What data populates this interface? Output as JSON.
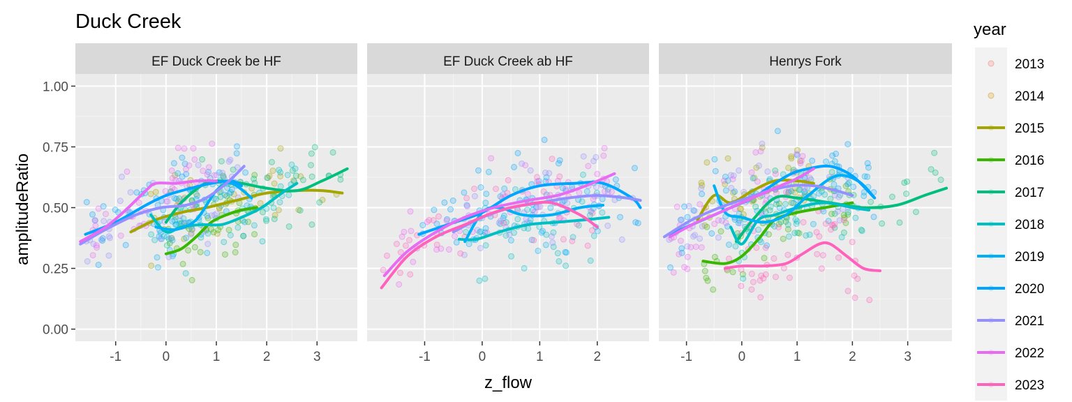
{
  "chart_data": {
    "type": "scatter",
    "title": "Duck Creek",
    "xlabel": "z_flow",
    "ylabel": "amplitudeRatio",
    "ylim": [
      -0.05,
      1.05
    ],
    "y_ticks": [
      0.0,
      0.25,
      0.5,
      0.75,
      1.0
    ],
    "y_tick_labels": [
      "0.00",
      "0.25",
      "0.50",
      "0.75",
      "1.00"
    ],
    "grid": true,
    "legend": {
      "title": "year",
      "position": "right",
      "items": [
        {
          "label": "2013",
          "color": "#F8766D",
          "kind": "point"
        },
        {
          "label": "2014",
          "color": "#D89000",
          "kind": "point"
        },
        {
          "label": "2015",
          "color": "#A3A500",
          "kind": "line"
        },
        {
          "label": "2016",
          "color": "#39B600",
          "kind": "line"
        },
        {
          "label": "2017",
          "color": "#00BF7D",
          "kind": "line"
        },
        {
          "label": "2018",
          "color": "#00BFC4",
          "kind": "line"
        },
        {
          "label": "2019",
          "color": "#00B0F6",
          "kind": "line"
        },
        {
          "label": "2020",
          "color": "#00A5FF",
          "kind": "line"
        },
        {
          "label": "2021",
          "color": "#9590FF",
          "kind": "line"
        },
        {
          "label": "2022",
          "color": "#E76BF3",
          "kind": "line"
        },
        {
          "label": "2023",
          "color": "#FF62BC",
          "kind": "line"
        }
      ]
    },
    "panels": [
      {
        "strip": "EF Duck Creek be HF",
        "xlim": [
          -1.8,
          3.8
        ],
        "x_ticks": [
          -1,
          0,
          1,
          2,
          3
        ],
        "x_tick_labels": [
          "-1",
          "0",
          "1",
          "2",
          "3"
        ],
        "series": [
          {
            "year": "2015",
            "x": [
              -0.7,
              -0.2,
              0.3,
              0.8,
              1.4,
              2.0,
              2.6,
              3.1,
              3.5
            ],
            "y": [
              0.4,
              0.45,
              0.48,
              0.5,
              0.53,
              0.56,
              0.57,
              0.57,
              0.56
            ]
          },
          {
            "year": "2016",
            "x": [
              0.0,
              0.3,
              0.6,
              0.9,
              1.2,
              1.5,
              1.8
            ],
            "y": [
              0.31,
              0.33,
              0.38,
              0.44,
              0.47,
              0.49,
              0.5
            ]
          },
          {
            "year": "2017",
            "x": [
              0.0,
              0.3,
              0.7,
              1.0,
              1.5,
              2.0,
              2.6,
              3.1,
              3.6
            ],
            "y": [
              0.44,
              0.52,
              0.59,
              0.61,
              0.6,
              0.58,
              0.57,
              0.61,
              0.66
            ]
          },
          {
            "year": "2018",
            "x": [
              -0.3,
              0.0,
              0.3,
              0.7,
              1.1,
              1.5,
              1.9,
              2.3,
              2.6
            ],
            "y": [
              0.47,
              0.4,
              0.42,
              0.43,
              0.43,
              0.46,
              0.5,
              0.56,
              0.6
            ]
          },
          {
            "year": "2019",
            "x": [
              -0.2,
              0.2,
              0.6,
              1.0,
              1.3,
              1.7
            ],
            "y": [
              0.42,
              0.41,
              0.45,
              0.57,
              0.6,
              0.54
            ]
          },
          {
            "year": "2020",
            "x": [
              -1.6,
              -1.0,
              -0.4,
              0.0,
              0.5,
              0.9,
              1.3,
              1.5
            ],
            "y": [
              0.39,
              0.44,
              0.51,
              0.55,
              0.58,
              0.6,
              0.61,
              0.59
            ]
          },
          {
            "year": "2021",
            "x": [
              -1.7,
              -1.2,
              -0.6,
              -0.1,
              0.4,
              0.8,
              1.2,
              1.55
            ],
            "y": [
              0.35,
              0.41,
              0.47,
              0.5,
              0.51,
              0.54,
              0.6,
              0.67
            ]
          },
          {
            "year": "2022",
            "x": [
              -1.7,
              -1.2,
              -0.8,
              -0.4,
              -0.2,
              0.2,
              0.6,
              1.0
            ],
            "y": [
              0.36,
              0.42,
              0.49,
              0.57,
              0.6,
              0.6,
              0.61,
              0.61
            ]
          }
        ]
      },
      {
        "strip": "EF Duck Creek ab HF",
        "xlim": [
          -2.0,
          2.9
        ],
        "x_ticks": [
          -1,
          0,
          1,
          2
        ],
        "x_tick_labels": [
          "-1",
          "0",
          "1",
          "2"
        ],
        "series": [
          {
            "year": "2018",
            "x": [
              -0.4,
              -0.1,
              0.3,
              0.8,
              1.3,
              1.8,
              2.2
            ],
            "y": [
              0.37,
              0.37,
              0.4,
              0.43,
              0.44,
              0.45,
              0.46
            ]
          },
          {
            "year": "2019",
            "x": [
              -0.3,
              0.0,
              0.3,
              0.7,
              1.2,
              1.7,
              2.1
            ],
            "y": [
              0.36,
              0.48,
              0.5,
              0.47,
              0.47,
              0.5,
              0.51
            ]
          },
          {
            "year": "2020",
            "x": [
              -1.1,
              -0.6,
              0.0,
              0.5,
              1.0,
              1.6,
              2.1,
              2.6,
              2.75
            ],
            "y": [
              0.39,
              0.43,
              0.48,
              0.55,
              0.59,
              0.6,
              0.6,
              0.54,
              0.5
            ]
          },
          {
            "year": "2021",
            "x": [
              -0.5,
              0.0,
              0.5,
              1.0,
              1.5,
              2.0,
              2.5,
              2.75
            ],
            "y": [
              0.4,
              0.46,
              0.5,
              0.52,
              0.54,
              0.55,
              0.54,
              0.53
            ]
          },
          {
            "year": "2022",
            "x": [
              -1.7,
              -1.3,
              -0.8,
              -0.3,
              0.2,
              0.8,
              1.3,
              1.8,
              2.3
            ],
            "y": [
              0.22,
              0.32,
              0.4,
              0.46,
              0.5,
              0.53,
              0.55,
              0.59,
              0.64
            ]
          },
          {
            "year": "2023",
            "x": [
              -1.75,
              -1.3,
              -0.8,
              -0.3,
              0.2,
              0.7,
              1.2,
              1.7,
              2.0
            ],
            "y": [
              0.17,
              0.3,
              0.38,
              0.43,
              0.48,
              0.51,
              0.52,
              0.47,
              0.42
            ]
          }
        ]
      },
      {
        "strip": "Henrys Fork",
        "xlim": [
          -1.5,
          3.8
        ],
        "x_ticks": [
          -1,
          0,
          1,
          2,
          3
        ],
        "x_tick_labels": [
          "-1",
          "0",
          "1",
          "2",
          "3"
        ],
        "series": [
          {
            "year": "2015",
            "x": [
              -0.8,
              -0.5,
              -0.2,
              0.2,
              0.6,
              1.0,
              1.3
            ],
            "y": [
              0.45,
              0.55,
              0.52,
              0.57,
              0.61,
              0.61,
              0.6
            ]
          },
          {
            "year": "2016",
            "x": [
              -0.7,
              -0.3,
              0.0,
              0.3,
              0.6,
              1.0,
              1.5,
              2.0
            ],
            "y": [
              0.28,
              0.27,
              0.3,
              0.37,
              0.45,
              0.48,
              0.5,
              0.52
            ]
          },
          {
            "year": "2017",
            "x": [
              -0.1,
              0.2,
              0.6,
              1.0,
              1.6,
              2.2,
              2.8,
              3.3,
              3.7
            ],
            "y": [
              0.36,
              0.45,
              0.54,
              0.54,
              0.52,
              0.5,
              0.51,
              0.55,
              0.58
            ]
          },
          {
            "year": "2018",
            "x": [
              -0.2,
              0.0,
              0.3,
              0.6,
              1.0,
              1.5,
              2.0,
              2.3
            ],
            "y": [
              0.42,
              0.35,
              0.45,
              0.47,
              0.5,
              0.52,
              0.5,
              0.49
            ]
          },
          {
            "year": "2019",
            "x": [
              -0.5,
              -0.3,
              0.0,
              0.4,
              0.8,
              1.2,
              1.7,
              2.1,
              2.4
            ],
            "y": [
              0.59,
              0.48,
              0.46,
              0.44,
              0.47,
              0.55,
              0.63,
              0.61,
              0.54
            ]
          },
          {
            "year": "2020",
            "x": [
              -1.3,
              -0.8,
              -0.3,
              0.2,
              0.6,
              0.9,
              1.2,
              1.6,
              2.0,
              2.4
            ],
            "y": [
              0.39,
              0.44,
              0.49,
              0.54,
              0.6,
              0.64,
              0.66,
              0.67,
              0.63,
              0.54
            ]
          },
          {
            "year": "2021",
            "x": [
              -1.4,
              -0.9,
              -0.4,
              0.1,
              0.5,
              0.9,
              1.3,
              1.7,
              2.0
            ],
            "y": [
              0.38,
              0.45,
              0.5,
              0.54,
              0.57,
              0.59,
              0.59,
              0.57,
              0.55
            ]
          },
          {
            "year": "2022",
            "x": [
              -1.3,
              -0.9,
              -0.5,
              -0.1,
              0.3,
              0.7,
              1.0,
              1.3
            ],
            "y": [
              0.38,
              0.43,
              0.47,
              0.51,
              0.55,
              0.59,
              0.62,
              0.66
            ]
          },
          {
            "year": "2023",
            "x": [
              -0.3,
              0.0,
              0.4,
              0.8,
              1.1,
              1.4,
              1.6,
              1.9,
              2.2,
              2.5
            ],
            "y": [
              0.25,
              0.26,
              0.26,
              0.27,
              0.31,
              0.35,
              0.35,
              0.3,
              0.25,
              0.24
            ]
          }
        ]
      }
    ]
  }
}
